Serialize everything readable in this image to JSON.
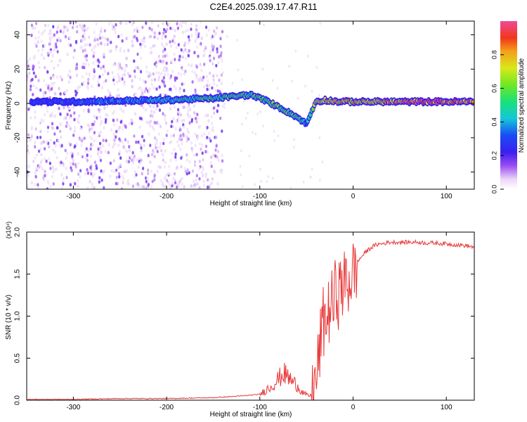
{
  "page_title": "C2E4.2025.039.17.47.R11",
  "chart_data": [
    {
      "type": "heatmap",
      "name": "spectrogram",
      "title": "C2E4.2025.039.17.47.R11",
      "xlabel": "Height of straight line (km)",
      "ylabel": "Frequency (Hz)",
      "xlim": [
        -350,
        130
      ],
      "ylim": [
        -50,
        48
      ],
      "x_ticks": [
        -300,
        -200,
        -100,
        0,
        100
      ],
      "y_ticks": [
        -40,
        -20,
        0,
        20,
        40
      ],
      "colorbar": {
        "label": "Normalized spectral amplitude",
        "range": [
          0,
          1
        ],
        "ticks": [
          0.0,
          0.2,
          0.4,
          0.6,
          0.8
        ]
      },
      "ridge": [
        {
          "x": -345,
          "f": 1,
          "amp": 0.3
        },
        {
          "x": -300,
          "f": 1,
          "amp": 0.35
        },
        {
          "x": -250,
          "f": 1.5,
          "amp": 0.4
        },
        {
          "x": -200,
          "f": 2,
          "amp": 0.45
        },
        {
          "x": -150,
          "f": 3,
          "amp": 0.55
        },
        {
          "x": -110,
          "f": 5,
          "amp": 0.6
        },
        {
          "x": -95,
          "f": 2,
          "amp": 0.6
        },
        {
          "x": -80,
          "f": -2,
          "amp": 0.6
        },
        {
          "x": -60,
          "f": -8,
          "amp": 0.55
        },
        {
          "x": -50,
          "f": -12,
          "amp": 0.4
        },
        {
          "x": -40,
          "f": 1,
          "amp": 0.7
        },
        {
          "x": -30,
          "f": 2,
          "amp": 0.75
        },
        {
          "x": -15,
          "f": 1,
          "amp": 0.8
        },
        {
          "x": 0,
          "f": 1,
          "amp": 0.8
        },
        {
          "x": 25,
          "f": 1,
          "amp": 0.85
        },
        {
          "x": 50,
          "f": 1,
          "amp": 0.9
        },
        {
          "x": 90,
          "f": 1,
          "amp": 0.95
        },
        {
          "x": 130,
          "f": 1,
          "amp": 0.95
        }
      ]
    },
    {
      "type": "line",
      "name": "snr",
      "xlabel": "Height of straight line (km)",
      "ylabel": "SNR (10 * v/v)",
      "y_multiplier": "(x10⁴)",
      "xlim": [
        -350,
        130
      ],
      "ylim": [
        0,
        2.0
      ],
      "x_ticks": [
        -300,
        -200,
        -100,
        0,
        100
      ],
      "y_ticks": [
        0.0,
        0.5,
        1.0,
        1.5,
        2.0
      ],
      "series": [
        {
          "name": "SNR",
          "color": "#e8393a",
          "x": [
            -350,
            -300,
            -250,
            -200,
            -150,
            -120,
            -100,
            -90,
            -80,
            -75,
            -70,
            -65,
            -60,
            -55,
            -50,
            -45,
            -40,
            -37,
            -35,
            -32,
            -30,
            -27,
            -25,
            -22,
            -20,
            -17,
            -15,
            -12,
            -10,
            -8,
            -5,
            -2,
            0,
            5,
            10,
            15,
            20,
            25,
            30,
            40,
            50,
            60,
            70,
            80,
            90,
            100,
            110,
            120,
            130
          ],
          "y": [
            0.01,
            0.01,
            0.02,
            0.02,
            0.03,
            0.05,
            0.07,
            0.15,
            0.25,
            0.32,
            0.28,
            0.22,
            0.18,
            0.1,
            0.06,
            0.05,
            0.2,
            0.45,
            0.7,
            0.9,
            1.0,
            0.95,
            1.15,
            1.1,
            1.2,
            1.35,
            1.25,
            1.4,
            1.3,
            1.45,
            1.4,
            1.5,
            1.5,
            1.65,
            1.72,
            1.78,
            1.82,
            1.85,
            1.86,
            1.88,
            1.88,
            1.88,
            1.88,
            1.87,
            1.87,
            1.86,
            1.85,
            1.84,
            1.82
          ]
        }
      ]
    }
  ]
}
